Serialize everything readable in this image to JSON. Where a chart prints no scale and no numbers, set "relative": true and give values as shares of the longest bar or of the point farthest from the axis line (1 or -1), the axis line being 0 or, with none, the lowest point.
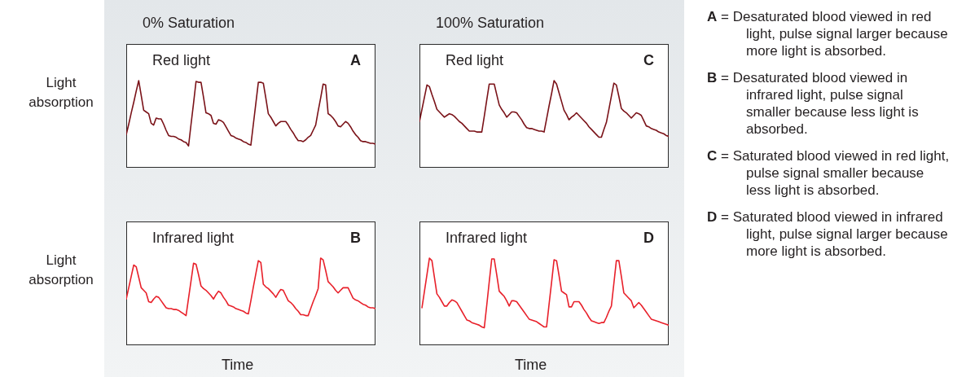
{
  "chart_data": [
    {
      "type": "line",
      "title": "0% Saturation",
      "subtitle": "Red light",
      "ylabel": "Light absorption",
      "annotations": [
        "A"
      ],
      "relative": true,
      "categories": [
        null,
        null,
        null,
        null,
        null,
        null,
        null,
        null,
        null,
        null,
        null,
        null,
        null,
        null,
        null,
        null,
        null,
        null,
        null,
        null,
        null,
        null,
        null,
        null,
        null,
        null,
        null,
        null,
        null,
        null,
        null,
        null,
        null,
        null,
        null,
        null,
        null,
        null,
        null,
        null,
        null,
        null,
        null,
        null,
        null,
        null,
        null,
        null,
        null,
        null,
        null,
        null,
        null,
        null,
        null,
        null,
        null,
        null,
        null,
        null,
        null,
        null,
        null,
        null,
        null,
        null,
        null,
        null,
        null,
        null,
        null,
        null,
        null,
        null,
        null,
        null,
        null,
        null,
        null,
        null,
        null,
        null,
        null,
        null,
        null,
        null,
        null,
        null,
        null,
        null,
        null,
        null,
        null,
        null,
        null,
        null,
        null,
        null,
        null,
        null,
        null
      ],
      "series": [
        {
          "color": "#7a1218",
          "values": [
            0.38,
            0.5,
            0.63,
            0.75,
            0.88,
            1,
            0.83,
            0.66,
            0.64,
            0.62,
            0.51,
            0.49,
            0.57,
            0.56,
            0.56,
            0.5,
            0.43,
            0.37,
            0.36,
            0.36,
            0.35,
            0.33,
            0.32,
            0.3,
            0.29,
            0.25,
            0.5,
            0.74,
            0.99,
            0.98,
            0.98,
            0.81,
            0.63,
            0.62,
            0.6,
            0.51,
            0.5,
            0.55,
            0.54,
            0.52,
            0.47,
            0.42,
            0.37,
            0.36,
            0.34,
            0.33,
            0.32,
            0.3,
            0.29,
            0.27,
            0.26,
            0.5,
            0.74,
            0.98,
            0.98,
            0.97,
            0.8,
            0.62,
            0.58,
            0.53,
            0.48,
            0.51,
            0.53,
            0.53,
            0.53,
            0.49,
            0.44,
            0.4,
            0.35,
            0.31,
            0.31,
            0.3,
            0.32,
            0.35,
            0.37,
            0.43,
            0.49,
            0.65,
            0.8,
            0.96,
            0.95,
            0.62,
            0.6,
            0.57,
            0.53,
            0.48,
            0.47,
            0.5,
            0.53,
            0.51,
            0.47,
            0.42,
            0.38,
            0.35,
            0.31,
            0.3,
            0.3,
            0.29,
            0.28,
            0.28,
            0.27
          ]
        }
      ]
    },
    {
      "type": "line",
      "title": "100% Saturation",
      "subtitle": "Red light",
      "annotations": [
        "C"
      ],
      "relative": true,
      "categories": [
        null,
        null,
        null,
        null,
        null,
        null,
        null,
        null,
        null,
        null,
        null,
        null,
        null,
        null,
        null,
        null,
        null,
        null,
        null,
        null,
        null,
        null,
        null,
        null,
        null,
        null,
        null,
        null,
        null,
        null,
        null,
        null,
        null,
        null,
        null,
        null,
        null,
        null,
        null,
        null,
        null,
        null,
        null,
        null,
        null,
        null,
        null,
        null,
        null,
        null,
        null,
        null,
        null,
        null,
        null,
        null,
        null,
        null,
        null,
        null,
        null,
        null,
        null,
        null,
        null,
        null,
        null,
        null,
        null,
        null,
        null,
        null,
        null,
        null,
        null,
        null,
        null,
        null,
        null,
        null,
        null,
        null,
        null,
        null,
        null,
        null,
        null,
        null,
        null,
        null,
        null,
        null,
        null,
        null,
        null,
        null,
        null,
        null,
        null,
        null,
        null
      ],
      "series": [
        {
          "color": "#7a1218",
          "values": [
            0.53,
            0.67,
            0.81,
            0.95,
            0.93,
            0.84,
            0.76,
            0.67,
            0.64,
            0.61,
            0.58,
            0.6,
            0.62,
            0.61,
            0.59,
            0.56,
            0.53,
            0.51,
            0.48,
            0.45,
            0.42,
            0.42,
            0.42,
            0.41,
            0.41,
            0.41,
            0.59,
            0.78,
            0.96,
            0.96,
            0.96,
            0.84,
            0.72,
            0.67,
            0.63,
            0.58,
            0.61,
            0.64,
            0.64,
            0.63,
            0.59,
            0.55,
            0.5,
            0.46,
            0.45,
            0.45,
            0.44,
            0.43,
            0.42,
            0.42,
            0.41,
            0.56,
            0.71,
            0.85,
            1,
            0.96,
            0.86,
            0.76,
            0.66,
            0.61,
            0.55,
            0.58,
            0.6,
            0.63,
            0.6,
            0.57,
            0.54,
            0.51,
            0.47,
            0.44,
            0.41,
            0.38,
            0.35,
            0.35,
            0.44,
            0.52,
            0.67,
            0.82,
            0.97,
            0.95,
            0.82,
            0.68,
            0.65,
            0.63,
            0.6,
            0.57,
            0.6,
            0.63,
            0.62,
            0.6,
            0.54,
            0.48,
            0.47,
            0.45,
            0.44,
            0.43,
            0.41,
            0.4,
            0.39,
            0.37,
            0.36
          ]
        }
      ]
    },
    {
      "type": "line",
      "subtitle": "Infrared light",
      "ylabel": "Light absorption",
      "xlabel": "Time",
      "annotations": [
        "B"
      ],
      "relative": true,
      "categories": [
        null,
        null,
        null,
        null,
        null,
        null,
        null,
        null,
        null,
        null,
        null,
        null,
        null,
        null,
        null,
        null,
        null,
        null,
        null,
        null,
        null,
        null,
        null,
        null,
        null,
        null,
        null,
        null,
        null,
        null,
        null,
        null,
        null,
        null,
        null,
        null,
        null,
        null,
        null,
        null,
        null,
        null,
        null,
        null,
        null,
        null,
        null,
        null,
        null,
        null,
        null,
        null,
        null,
        null,
        null,
        null,
        null,
        null,
        null,
        null,
        null,
        null,
        null,
        null,
        null,
        null,
        null,
        null,
        null,
        null,
        null,
        null,
        null,
        null,
        null,
        null,
        null,
        null,
        null,
        null,
        null,
        null,
        null,
        null,
        null,
        null,
        null,
        null,
        null,
        null,
        null,
        null,
        null,
        null,
        null,
        null,
        null,
        null,
        null,
        null,
        null
      ],
      "series": [
        {
          "color": "#e8202a",
          "values": [
            0.53,
            0.66,
            0.79,
            0.92,
            0.9,
            0.78,
            0.66,
            0.63,
            0.6,
            0.5,
            0.49,
            0.53,
            0.56,
            0.55,
            0.51,
            0.47,
            0.43,
            0.42,
            0.42,
            0.41,
            0.41,
            0.4,
            0.38,
            0.36,
            0.34,
            0.54,
            0.74,
            0.94,
            0.93,
            0.81,
            0.68,
            0.65,
            0.63,
            0.6,
            0.57,
            0.53,
            0.58,
            0.62,
            0.6,
            0.55,
            0.51,
            0.46,
            0.45,
            0.44,
            0.42,
            0.41,
            0.4,
            0.39,
            0.37,
            0.36,
            0.51,
            0.67,
            0.82,
            0.97,
            0.95,
            0.7,
            0.67,
            0.65,
            0.62,
            0.59,
            0.55,
            0.6,
            0.64,
            0.63,
            0.57,
            0.51,
            0.49,
            0.46,
            0.42,
            0.39,
            0.35,
            0.35,
            0.34,
            0.34,
            0.42,
            0.5,
            0.57,
            0.65,
            1,
            0.98,
            0.86,
            0.73,
            0.7,
            0.67,
            0.63,
            0.6,
            0.63,
            0.66,
            0.66,
            0.66,
            0.6,
            0.54,
            0.52,
            0.51,
            0.49,
            0.47,
            0.46,
            0.44,
            0.43,
            0.43,
            0.42
          ]
        }
      ]
    },
    {
      "type": "line",
      "subtitle": "Infrared light",
      "xlabel": "Time",
      "annotations": [
        "D"
      ],
      "relative": true,
      "categories": [
        null,
        null,
        null,
        null,
        null,
        null,
        null,
        null,
        null,
        null,
        null,
        null,
        null,
        null,
        null,
        null,
        null,
        null,
        null,
        null,
        null,
        null,
        null,
        null,
        null,
        null,
        null,
        null,
        null,
        null,
        null,
        null,
        null,
        null,
        null,
        null,
        null,
        null,
        null,
        null,
        null,
        null,
        null,
        null,
        null,
        null,
        null,
        null,
        null,
        null,
        null,
        null,
        null,
        null,
        null,
        null,
        null,
        null,
        null,
        null,
        null,
        null,
        null,
        null,
        null,
        null,
        null,
        null,
        null,
        null,
        null,
        null,
        null,
        null,
        null,
        null,
        null,
        null,
        null,
        null,
        null,
        null,
        null,
        null,
        null,
        null,
        null,
        null,
        null,
        null,
        null,
        null,
        null,
        null,
        null,
        null,
        null,
        null,
        null,
        null,
        null
      ],
      "series": [
        {
          "color": "#e8202a",
          "values": [
            null,
            0.43,
            0.62,
            0.81,
            1,
            0.97,
            0.78,
            0.59,
            0.55,
            0.5,
            0.45,
            0.45,
            0.49,
            0.52,
            0.51,
            0.49,
            0.44,
            0.39,
            0.34,
            0.29,
            0.28,
            0.26,
            0.25,
            0.24,
            0.23,
            0.21,
            0.2,
            0.46,
            0.73,
            0.99,
            0.99,
            0.81,
            0.62,
            0.59,
            0.56,
            0.51,
            0.45,
            0.51,
            0.51,
            0.5,
            0.46,
            0.42,
            0.38,
            0.34,
            0.3,
            0.29,
            0.28,
            0.27,
            0.25,
            0.23,
            0.21,
            0.21,
            0.47,
            0.72,
            0.98,
            0.97,
            0.8,
            0.62,
            0.6,
            0.58,
            0.44,
            0.44,
            0.5,
            0.5,
            0.5,
            0.46,
            0.41,
            0.37,
            0.32,
            0.28,
            0.27,
            0.26,
            0.25,
            0.26,
            0.26,
            0.32,
            0.39,
            0.45,
            0.71,
            0.97,
            0.97,
            0.79,
            0.6,
            0.57,
            0.54,
            0.51,
            0.43,
            0.46,
            0.49,
            0.46,
            0.42,
            0.38,
            0.34,
            0.3,
            0.29,
            0.28,
            0.27,
            0.26,
            0.25,
            0.24,
            0.23
          ]
        }
      ]
    },
    {
      "type": "other",
      "annotations": [
        "A = Desaturated blood viewed in red light, pulse signal larger because more light is absorbed.",
        "B = Desaturated blood viewed in infrared light, pulse signal smaller because less light is absorbed.",
        "C = Saturated blood viewed in red light, pulse signal smaller because less light is absorbed.",
        "D = Saturated blood viewed in infrared light, pulse signal larger because more light is absorbed."
      ]
    }
  ]
}
